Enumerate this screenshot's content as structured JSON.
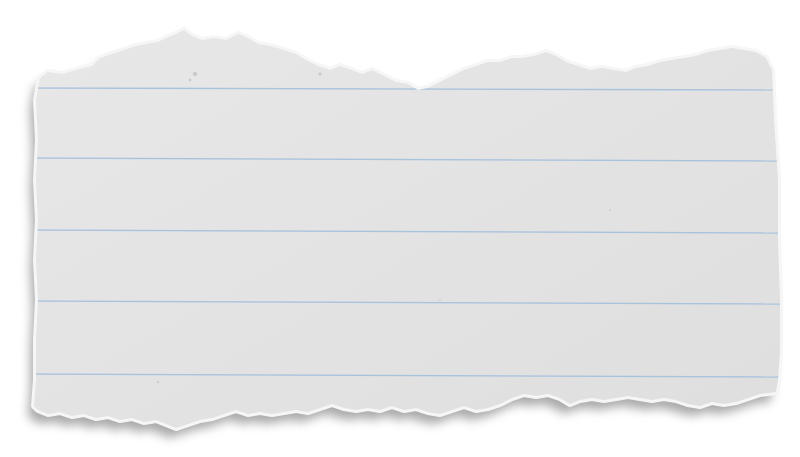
{
  "scene": {
    "subject": "torn-lined-paper-scrap",
    "ruled_line_count": 5,
    "colors": {
      "background": "#ffffff",
      "paper": "#e3e3e3",
      "paper_edge": "#f4f4f4",
      "shadow": "#9a9a9a",
      "ruled_line": "#a9c3dd"
    }
  }
}
